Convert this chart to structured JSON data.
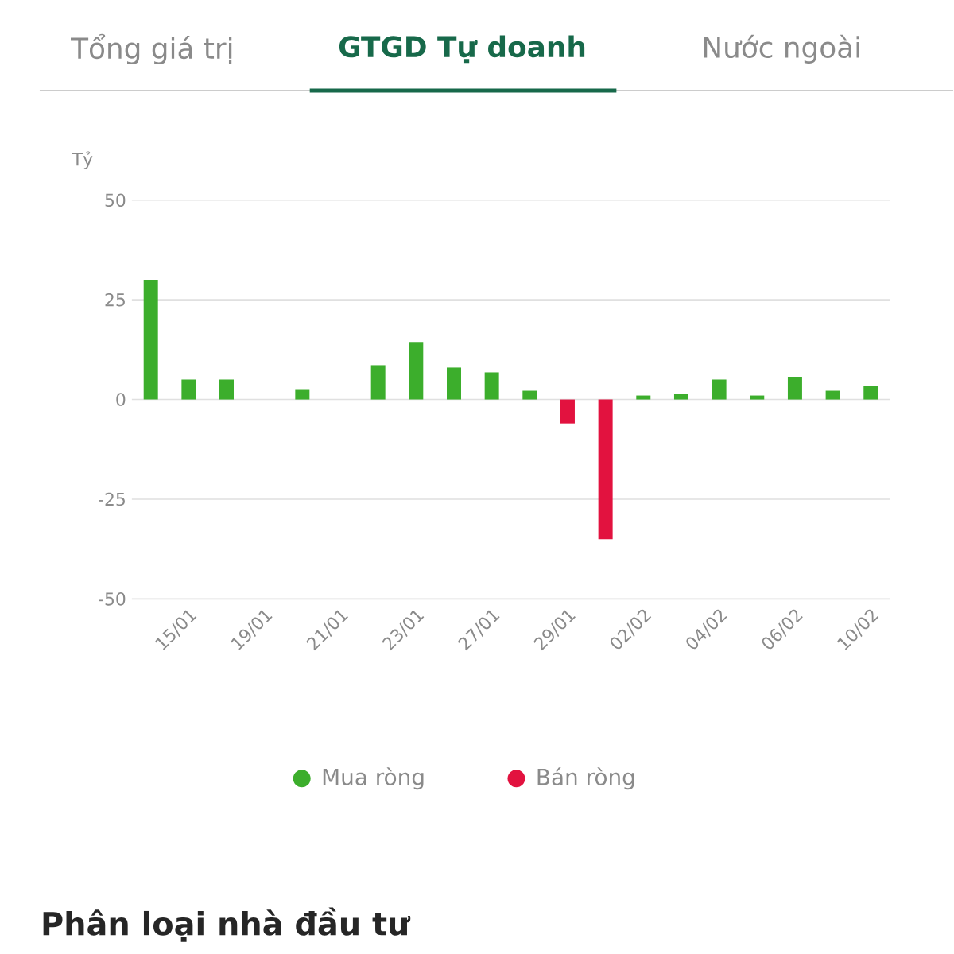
{
  "chart_data": {
    "type": "bar",
    "title": "GTGD Tự doanh",
    "ylabel": "Tỷ",
    "annotations": [
      "Tổng giá trị",
      "Nước ngoài",
      "Phân loại nhà đầu tư"
    ],
    "categories": [
      null,
      "15/01",
      null,
      "19/01",
      null,
      "21/01",
      null,
      "23/01",
      null,
      "27/01",
      null,
      "29/01",
      null,
      "02/02",
      null,
      "04/02",
      null,
      "06/02",
      null,
      "10/02"
    ],
    "series": [
      {
        "name": "Mua ròng",
        "color": "#3cae2c",
        "values": [
          30,
          5,
          5,
          null,
          2.6,
          null,
          8.6,
          14.4,
          8,
          6.8,
          2.2,
          null,
          null,
          1,
          1.5,
          5,
          1,
          5.7,
          2.2,
          3.3
        ]
      },
      {
        "name": "Bán ròng",
        "color": "#e2123f",
        "values": [
          null,
          null,
          null,
          null,
          null,
          null,
          null,
          null,
          null,
          null,
          null,
          -6,
          -35,
          null,
          null,
          null,
          null,
          null,
          null,
          null
        ]
      }
    ],
    "ylim": [
      -50,
      50
    ],
    "yticks": [
      -50,
      -25,
      0,
      25,
      50
    ],
    "grid": "y",
    "legend": "bottom"
  }
}
